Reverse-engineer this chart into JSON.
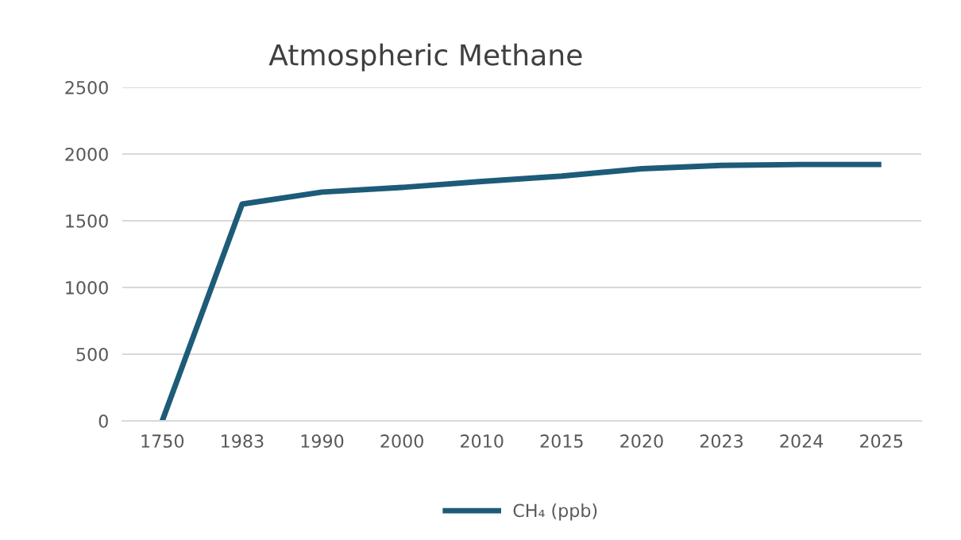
{
  "chart_data": {
    "type": "line",
    "title": "Atmospheric Methane",
    "categories": [
      "1750",
      "1983",
      "1990",
      "2000",
      "2010",
      "2015",
      "2020",
      "2023",
      "2024",
      "2025"
    ],
    "series": [
      {
        "name": "CH₄ (ppb)",
        "color": "#1d5b79",
        "values": [
          0,
          1625,
          1715,
          1750,
          1795,
          1835,
          1890,
          1915,
          1922,
          1922
        ]
      }
    ],
    "ylim": [
      0,
      2500
    ],
    "yticks": [
      0,
      500,
      1000,
      1500,
      2000,
      2500
    ],
    "grid": "y",
    "legend": "bottom",
    "marker": "none",
    "line_style": "solid"
  }
}
